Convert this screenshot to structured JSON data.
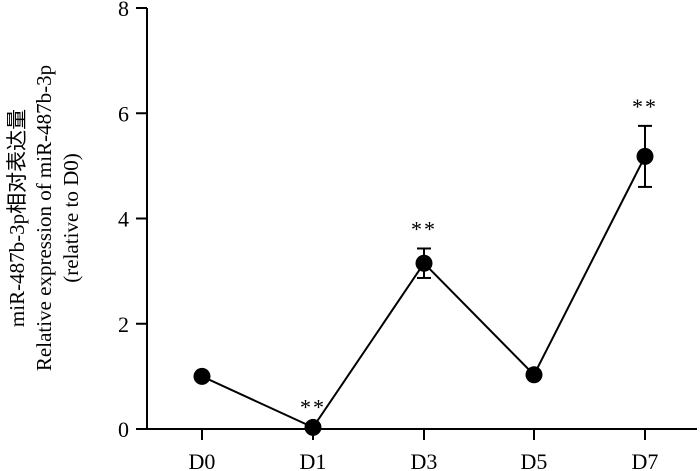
{
  "chart_data": {
    "type": "line",
    "title": "",
    "xlabel": "",
    "ylabel_lines": [
      "miR-487b-3p相对表达量",
      "Relative expression of miR-487b-3p",
      "(relative to D0)"
    ],
    "categories": [
      "D0",
      "D1",
      "D3",
      "D5",
      "D7"
    ],
    "series": [
      {
        "values": [
          1.0,
          0.03,
          3.15,
          1.03,
          5.18
        ],
        "error": [
          0.0,
          0.02,
          0.28,
          0.0,
          0.58
        ],
        "significance": [
          "",
          "**",
          "**",
          "",
          "**"
        ]
      }
    ],
    "ylim": [
      0,
      8
    ],
    "yticks": [
      "0",
      "2",
      "4",
      "6",
      "8"
    ],
    "grid": false,
    "legend": "none"
  }
}
